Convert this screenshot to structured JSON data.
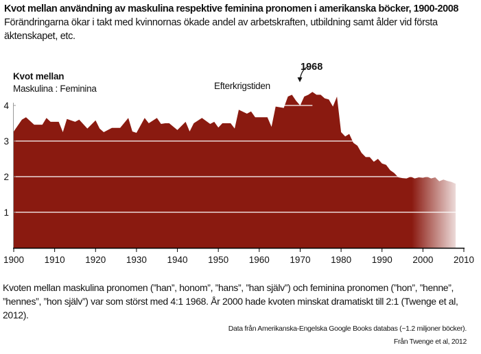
{
  "header": {
    "title": "Kvot mellan användning av maskulina respektive feminina pronomen i amerikanska böcker, 1900-2008",
    "subtitle": "Förändringarna ökar i takt med kvinnornas ökade andel av arbetskraften, utbildning samt ålder vid första äktenskapet, etc."
  },
  "axis": {
    "ylabel_line1": "Kvot mellan",
    "ylabel_line2": "Maskulina : Feminina"
  },
  "annotations": {
    "postwar": "Efterkrigstiden",
    "peak": "1968"
  },
  "caption": "Kvoten mellan maskulina pronomen (”han”, honom”, ”hans”, ”han själv”) och feminina pronomen (”hon”, ”henne”, ”hennes”, ”hon själv”) var som störst med 4:1 1968. År 2000 hade kvoten minskat dramatiskt till 2:1 (Twenge et al, 2012).",
  "sources": {
    "line1": "Data från Amerikanska-Engelska Google Books databas (~1.2 miljoner böcker).",
    "line2": "Från Twenge et al, 2012"
  },
  "colors": {
    "area_top": "#2f6496",
    "area_mid": "#6f92bb",
    "area_light": "#b4c8e0",
    "area_bottom": "#8b1a12",
    "gridline": "#ffffff"
  },
  "chart_data": {
    "type": "area",
    "title": "Kvot mellan användning av maskulina respektive feminina pronomen i amerikanska böcker, 1900-2008",
    "xlabel": "",
    "ylabel": "Kvot mellan Maskulina : Feminina",
    "xlim": [
      1900,
      2010
    ],
    "ylim": [
      0,
      4
    ],
    "xticks": [
      1900,
      1910,
      1920,
      1930,
      1940,
      1950,
      1960,
      1970,
      1980,
      1990,
      2000,
      2010
    ],
    "yticks": [
      1,
      2,
      3,
      4
    ],
    "grid": "horizontal white lines at 1, 2, 3, 4",
    "legend": null,
    "annotations": [
      {
        "text": "Efterkrigstiden",
        "x": 1962,
        "y": 4.4
      },
      {
        "text": "1968",
        "x": 1968,
        "y": 4.3,
        "arrow": true
      }
    ],
    "x": [
      1900,
      1902,
      1903,
      1905,
      1907,
      1908,
      1909,
      1911,
      1912,
      1913,
      1915,
      1916,
      1918,
      1920,
      1921,
      1922,
      1924,
      1926,
      1928,
      1929,
      1930,
      1932,
      1933,
      1935,
      1936,
      1937,
      1938,
      1940,
      1942,
      1943,
      1944,
      1946,
      1948,
      1949,
      1950,
      1951,
      1953,
      1954,
      1955,
      1957,
      1958,
      1959,
      1960,
      1962,
      1963,
      1964,
      1966,
      1967,
      1968,
      1969,
      1970,
      1971,
      1972,
      1973,
      1974,
      1975,
      1976,
      1977,
      1978,
      1979,
      1980,
      1981,
      1982,
      1983,
      1984,
      1985,
      1986,
      1987,
      1988,
      1989,
      1990,
      1991,
      1992,
      1993,
      1994,
      1995,
      1996,
      1997,
      1998,
      1999,
      2000,
      2001,
      2002,
      2003,
      2004,
      2005,
      2006,
      2007,
      2008
    ],
    "values": [
      3.27,
      3.6,
      3.67,
      3.46,
      3.46,
      3.65,
      3.54,
      3.54,
      3.25,
      3.62,
      3.54,
      3.6,
      3.35,
      3.58,
      3.35,
      3.25,
      3.37,
      3.37,
      3.65,
      3.27,
      3.23,
      3.65,
      3.5,
      3.65,
      3.48,
      3.5,
      3.5,
      3.31,
      3.54,
      3.27,
      3.5,
      3.65,
      3.48,
      3.54,
      3.38,
      3.5,
      3.5,
      3.35,
      3.88,
      3.77,
      3.83,
      3.67,
      3.67,
      3.67,
      3.4,
      3.97,
      3.93,
      4.25,
      4.3,
      4.13,
      4.0,
      4.25,
      4.3,
      4.38,
      4.3,
      4.3,
      4.2,
      4.17,
      3.97,
      4.25,
      3.25,
      3.13,
      3.2,
      2.95,
      2.87,
      2.67,
      2.55,
      2.55,
      2.42,
      2.5,
      2.37,
      2.33,
      2.18,
      2.1,
      1.98,
      1.96,
      1.95,
      2.0,
      1.95,
      1.98,
      1.97,
      2.0,
      1.95,
      1.98,
      1.87,
      1.92,
      1.88,
      1.85,
      1.8
    ]
  }
}
